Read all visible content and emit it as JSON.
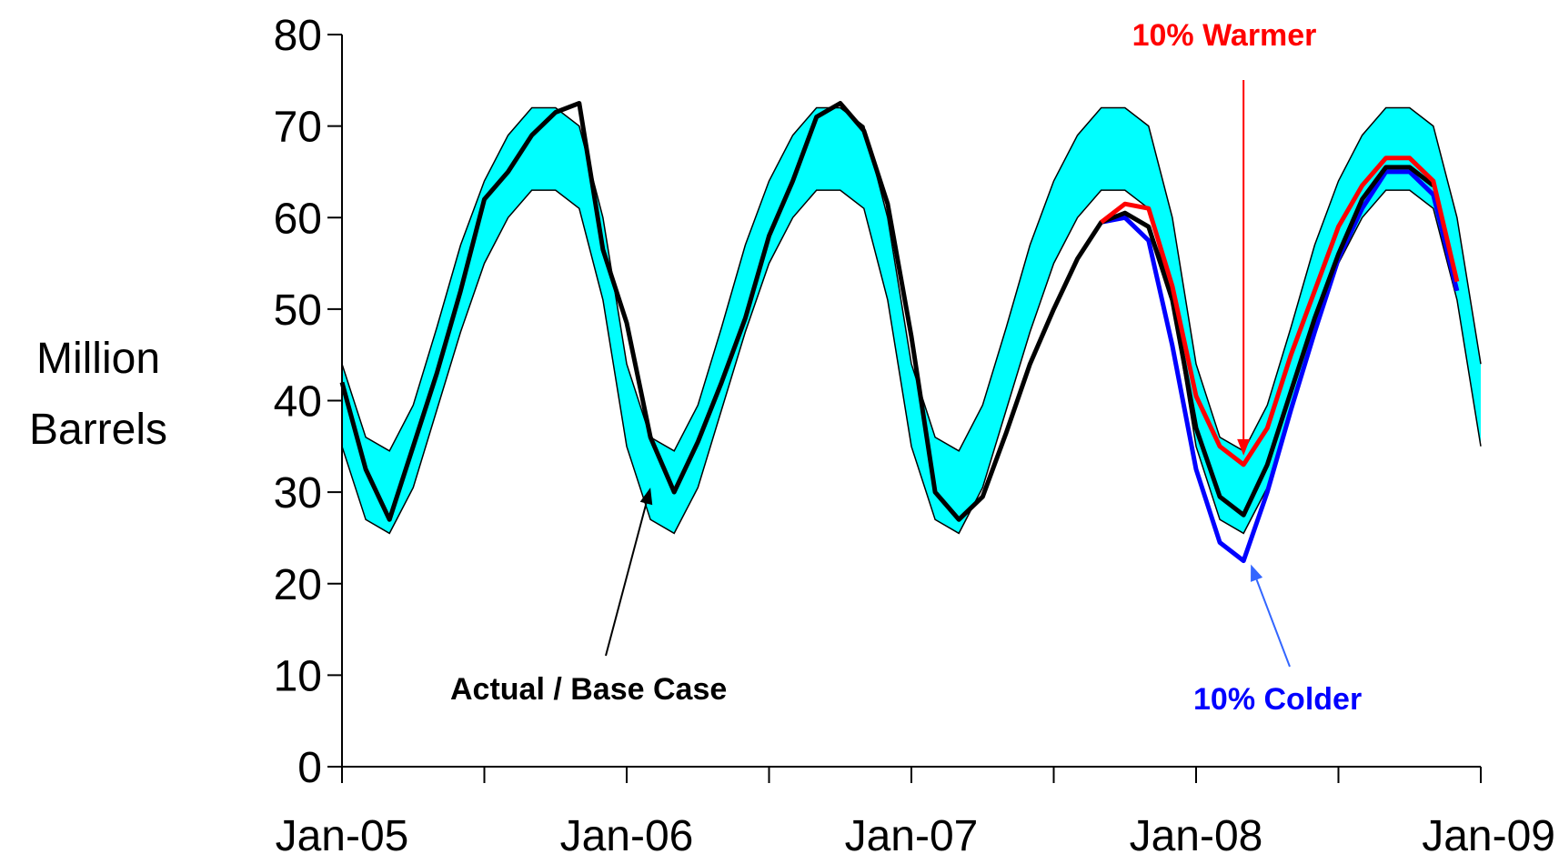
{
  "chart_data": {
    "type": "line",
    "title": "",
    "xlabel": "",
    "ylabel_lines": [
      "Million",
      "Barrels"
    ],
    "ylim": [
      0,
      80
    ],
    "y_ticks": [
      0,
      10,
      20,
      30,
      40,
      50,
      60,
      70,
      80
    ],
    "x_range": [
      "2005-01",
      "2009-01"
    ],
    "x_tick_labels": [
      {
        "date": "2005-01",
        "label": "Jan-05"
      },
      {
        "date": "2006-01",
        "label": "Jan-06"
      },
      {
        "date": "2007-01",
        "label": "Jan-07"
      },
      {
        "date": "2008-01",
        "label": "Jan-08"
      },
      {
        "date": "2009-01",
        "label": "Jan-09"
      }
    ],
    "grid": false,
    "colors": {
      "band": "#00FFFF",
      "base": "#000000",
      "warmer": "#FF0000",
      "colder": "#0000FF",
      "colder_arrow": "#3366FF"
    },
    "band": {
      "name": "",
      "x": [
        "2005-01",
        "2005-02",
        "2005-03",
        "2005-04",
        "2005-05",
        "2005-06",
        "2005-07",
        "2005-08",
        "2005-09",
        "2005-10",
        "2005-11",
        "2005-12",
        "2006-01",
        "2006-02",
        "2006-03",
        "2006-04",
        "2006-05",
        "2006-06",
        "2006-07",
        "2006-08",
        "2006-09",
        "2006-10",
        "2006-11",
        "2006-12",
        "2007-01",
        "2007-02",
        "2007-03",
        "2007-04",
        "2007-05",
        "2007-06",
        "2007-07",
        "2007-08",
        "2007-09",
        "2007-10",
        "2007-11",
        "2007-12",
        "2008-01",
        "2008-02",
        "2008-03",
        "2008-04",
        "2008-05",
        "2008-06",
        "2008-07",
        "2008-08",
        "2008-09",
        "2008-10",
        "2008-11",
        "2008-12",
        "2009-01"
      ],
      "upper": [
        44,
        36,
        34.5,
        39.5,
        48,
        57,
        64,
        69,
        72,
        72,
        70,
        60,
        44,
        36,
        34.5,
        39.5,
        48,
        57,
        64,
        69,
        72,
        72,
        70,
        60,
        44,
        36,
        34.5,
        39.5,
        48,
        57,
        64,
        69,
        72,
        72,
        70,
        60,
        44,
        36,
        34.5,
        39.5,
        48,
        57,
        64,
        69,
        72,
        72,
        70,
        60,
        44
      ],
      "lower": [
        35,
        27,
        25.5,
        30.5,
        39,
        47.5,
        55,
        60,
        63,
        63,
        61,
        51,
        35,
        27,
        25.5,
        30.5,
        39,
        47.5,
        55,
        60,
        63,
        63,
        61,
        51,
        35,
        27,
        25.5,
        30.5,
        39,
        47.5,
        55,
        60,
        63,
        63,
        61,
        51,
        35,
        27,
        25.5,
        30.5,
        39,
        47.5,
        55,
        60,
        63,
        63,
        61,
        51,
        35
      ]
    },
    "series": [
      {
        "name": "Actual / Base Case",
        "x": [
          "2005-01",
          "2005-02",
          "2005-03",
          "2005-04",
          "2005-05",
          "2005-06",
          "2005-07",
          "2005-08",
          "2005-09",
          "2005-10",
          "2005-11",
          "2005-12",
          "2006-01",
          "2006-02",
          "2006-03",
          "2006-04",
          "2006-05",
          "2006-06",
          "2006-07",
          "2006-08",
          "2006-09",
          "2006-10",
          "2006-11",
          "2006-12",
          "2007-01",
          "2007-02",
          "2007-03",
          "2007-04",
          "2007-05",
          "2007-06",
          "2007-07",
          "2007-08",
          "2007-09",
          "2007-10",
          "2007-11",
          "2007-12",
          "2008-01",
          "2008-02",
          "2008-03",
          "2008-04",
          "2008-05",
          "2008-06",
          "2008-07",
          "2008-08",
          "2008-09",
          "2008-10",
          "2008-11"
        ],
        "values": [
          42,
          32.5,
          27,
          35,
          43,
          52,
          62,
          65,
          69,
          71.5,
          72.5,
          56.5,
          48.5,
          36,
          30,
          35.5,
          42,
          49,
          58,
          64,
          71,
          72.5,
          69.5,
          61.5,
          47,
          30,
          27,
          29.5,
          36.5,
          44,
          50,
          55.5,
          59.5,
          60.5,
          59,
          51,
          37,
          29.5,
          27.5,
          33,
          41,
          49,
          56,
          62,
          65.5,
          65.5,
          63.5
        ]
      },
      {
        "name": "10% Warmer",
        "x": [
          "2007-09",
          "2007-10",
          "2007-11",
          "2007-12",
          "2008-01",
          "2008-02",
          "2008-03",
          "2008-04",
          "2008-05",
          "2008-06",
          "2008-07",
          "2008-08",
          "2008-09",
          "2008-10",
          "2008-11",
          "2008-12"
        ],
        "values": [
          59.5,
          61.5,
          61,
          52.5,
          40.5,
          35,
          33,
          37,
          45,
          52,
          59,
          63.5,
          66.5,
          66.5,
          64,
          53
        ]
      },
      {
        "name": "10% Colder",
        "x": [
          "2007-09",
          "2007-10",
          "2007-11",
          "2007-12",
          "2008-01",
          "2008-02",
          "2008-03",
          "2008-04",
          "2008-05",
          "2008-06",
          "2008-07",
          "2008-08",
          "2008-09",
          "2008-10",
          "2008-11",
          "2008-12"
        ],
        "values": [
          59.5,
          60,
          57.5,
          46,
          32.5,
          24.5,
          22.5,
          30,
          39,
          47.5,
          55.5,
          61,
          65,
          65,
          62.5,
          52
        ]
      }
    ],
    "annotations": [
      {
        "text": "Actual / Base Case",
        "color": "#000000",
        "points_to": {
          "x": "2006-02",
          "y": 30.5
        }
      },
      {
        "text": "10% Warmer",
        "color": "#FF0000",
        "points_to": {
          "x": "2008-03",
          "y": 34
        }
      },
      {
        "text": "10% Colder",
        "color": "#0000FF",
        "points_to": {
          "x": "2008-03",
          "y": 22.5
        }
      }
    ]
  }
}
